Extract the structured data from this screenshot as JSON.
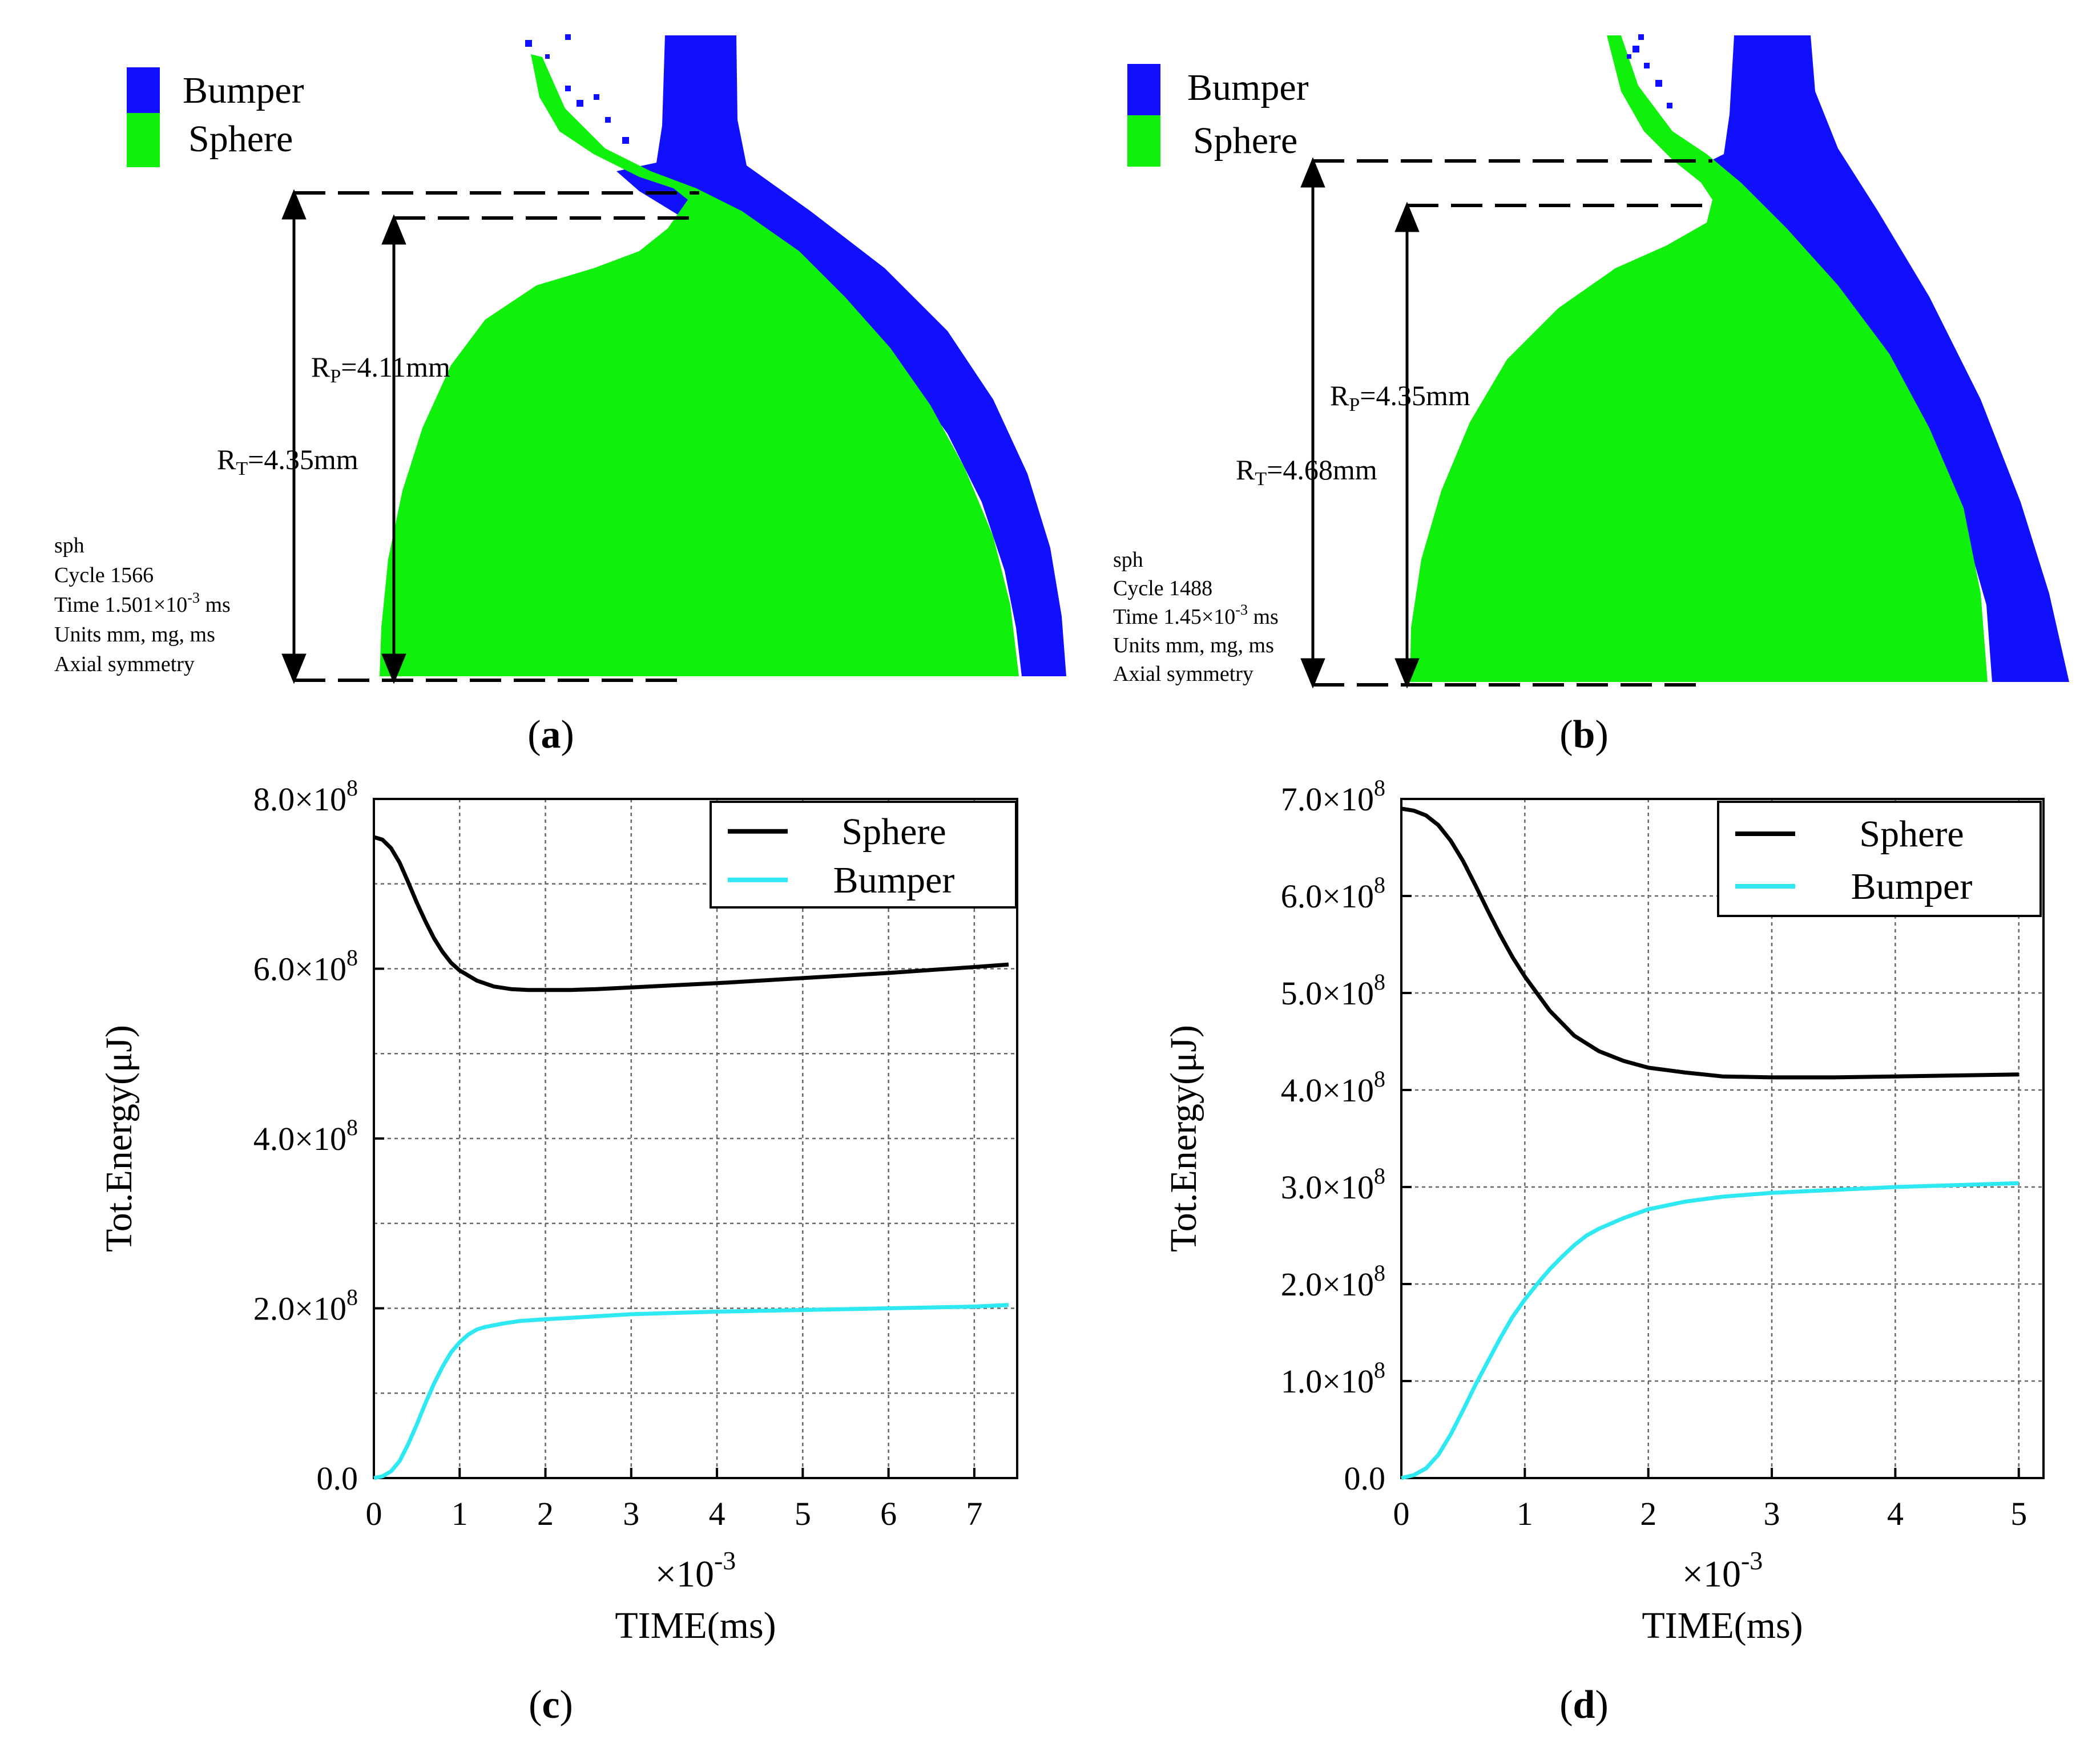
{
  "colors": {
    "bumper": "#1010ff",
    "sphere": "#0ff00a",
    "sphere_line": "#000000",
    "bumper_line": "#2ee8f2"
  },
  "panels": [
    {
      "label": "a",
      "legend": [
        "Bumper",
        "Sphere"
      ],
      "rp": "4.11mm",
      "rt": "4.35mm",
      "info": [
        "sph",
        "Cycle 1566",
        "Time 1.501×10",
        "-3",
        " ms",
        "Units mm, mg, ms",
        "Axial symmetry"
      ]
    },
    {
      "label": "b",
      "legend": [
        "Bumper",
        "Sphere"
      ],
      "rp": "4.35mm",
      "rt": "4.68mm",
      "info": [
        "sph",
        "Cycle 1488",
        "Time 1.45×10",
        "-3",
        " ms",
        "Units mm, mg, ms",
        "Axial symmetry"
      ]
    }
  ],
  "chart_data": [
    {
      "panel": "c",
      "type": "line",
      "xlabel": "TIME(ms)",
      "x_multiplier": "×10-3",
      "ylabel": "Tot.Energy(μJ)",
      "xlim": [
        0,
        7.5
      ],
      "ylim": [
        0,
        800000000
      ],
      "xticks": [
        0,
        1,
        2,
        3,
        4,
        5,
        6,
        7
      ],
      "xtick_labels": [
        "0",
        "1",
        "2",
        "3",
        "4",
        "5",
        "6",
        "7"
      ],
      "yticks": [
        0,
        200000000,
        400000000,
        600000000,
        800000000
      ],
      "ytick_labels": [
        {
          "mant": "0.0",
          "exp": ""
        },
        {
          "mant": "2.0×10",
          "exp": "8"
        },
        {
          "mant": "4.0×10",
          "exp": "8"
        },
        {
          "mant": "6.0×10",
          "exp": "8"
        },
        {
          "mant": "8.0×10",
          "exp": "8"
        }
      ],
      "grid": true,
      "legend_position": "top-right",
      "series": [
        {
          "name": "Sphere",
          "color": "#000000",
          "x": [
            0,
            0.1,
            0.2,
            0.3,
            0.4,
            0.5,
            0.6,
            0.7,
            0.8,
            0.9,
            1.0,
            1.2,
            1.4,
            1.6,
            1.8,
            2.0,
            2.3,
            2.6,
            3.0,
            4.0,
            5.0,
            6.0,
            7.0,
            7.4
          ],
          "values": [
            755000000,
            752000000,
            742000000,
            725000000,
            702000000,
            678000000,
            656000000,
            636000000,
            620000000,
            607000000,
            598000000,
            586000000,
            579000000,
            576000000,
            575000000,
            575000000,
            575000000,
            576000000,
            578000000,
            583000000,
            589000000,
            595000000,
            602000000,
            605000000
          ]
        },
        {
          "name": "Bumper",
          "color": "#2ee8f2",
          "x": [
            0,
            0.1,
            0.2,
            0.3,
            0.4,
            0.5,
            0.6,
            0.7,
            0.8,
            0.9,
            1.0,
            1.1,
            1.2,
            1.3,
            1.4,
            1.5,
            1.7,
            2.0,
            2.5,
            3.0,
            4.0,
            5.0,
            6.0,
            7.0,
            7.4
          ],
          "values": [
            0,
            2000000,
            8000000,
            20000000,
            40000000,
            63000000,
            88000000,
            111000000,
            131000000,
            148000000,
            160000000,
            169000000,
            175000000,
            178000000,
            180000000,
            182000000,
            185000000,
            187000000,
            190000000,
            193000000,
            196000000,
            198000000,
            200000000,
            202000000,
            204000000
          ]
        }
      ]
    },
    {
      "panel": "d",
      "type": "line",
      "xlabel": "TIME(ms)",
      "x_multiplier": "×10-3",
      "ylabel": "Tot.Energy(μJ)",
      "xlim": [
        0,
        5.2
      ],
      "ylim": [
        0,
        700000000
      ],
      "xticks": [
        0,
        1,
        2,
        3,
        4,
        5
      ],
      "xtick_labels": [
        "0",
        "1",
        "2",
        "3",
        "4",
        "5"
      ],
      "yticks": [
        0,
        100000000,
        200000000,
        300000000,
        400000000,
        500000000,
        600000000,
        700000000
      ],
      "ytick_labels": [
        {
          "mant": "0.0",
          "exp": ""
        },
        {
          "mant": "1.0×10",
          "exp": "8"
        },
        {
          "mant": "2.0×10",
          "exp": "8"
        },
        {
          "mant": "3.0×10",
          "exp": "8"
        },
        {
          "mant": "4.0×10",
          "exp": "8"
        },
        {
          "mant": "5.0×10",
          "exp": "8"
        },
        {
          "mant": "6.0×10",
          "exp": "8"
        },
        {
          "mant": "7.0×10",
          "exp": "8"
        }
      ],
      "grid": true,
      "legend_position": "top-right",
      "series": [
        {
          "name": "Sphere",
          "color": "#000000",
          "x": [
            0,
            0.1,
            0.2,
            0.3,
            0.4,
            0.5,
            0.6,
            0.7,
            0.8,
            0.9,
            1.0,
            1.2,
            1.4,
            1.6,
            1.8,
            2.0,
            2.3,
            2.6,
            3.0,
            3.5,
            4.0,
            4.5,
            5.0
          ],
          "values": [
            690000000,
            688000000,
            683000000,
            673000000,
            657000000,
            636000000,
            611000000,
            585000000,
            560000000,
            537000000,
            517000000,
            482000000,
            456000000,
            440000000,
            430000000,
            423000000,
            418000000,
            414000000,
            413000000,
            413000000,
            414000000,
            415000000,
            416000000
          ]
        },
        {
          "name": "Bumper",
          "color": "#2ee8f2",
          "x": [
            0,
            0.1,
            0.2,
            0.3,
            0.4,
            0.5,
            0.6,
            0.7,
            0.8,
            0.9,
            1.0,
            1.1,
            1.2,
            1.3,
            1.4,
            1.5,
            1.6,
            1.8,
            2.0,
            2.3,
            2.6,
            3.0,
            3.5,
            4.0,
            4.5,
            5.0
          ],
          "values": [
            0,
            3000000,
            10000000,
            24000000,
            45000000,
            70000000,
            96000000,
            120000000,
            144000000,
            166000000,
            184000000,
            200000000,
            215000000,
            228000000,
            240000000,
            250000000,
            257000000,
            268000000,
            277000000,
            285000000,
            290000000,
            294000000,
            297000000,
            300000000,
            302000000,
            304000000
          ]
        }
      ]
    }
  ]
}
